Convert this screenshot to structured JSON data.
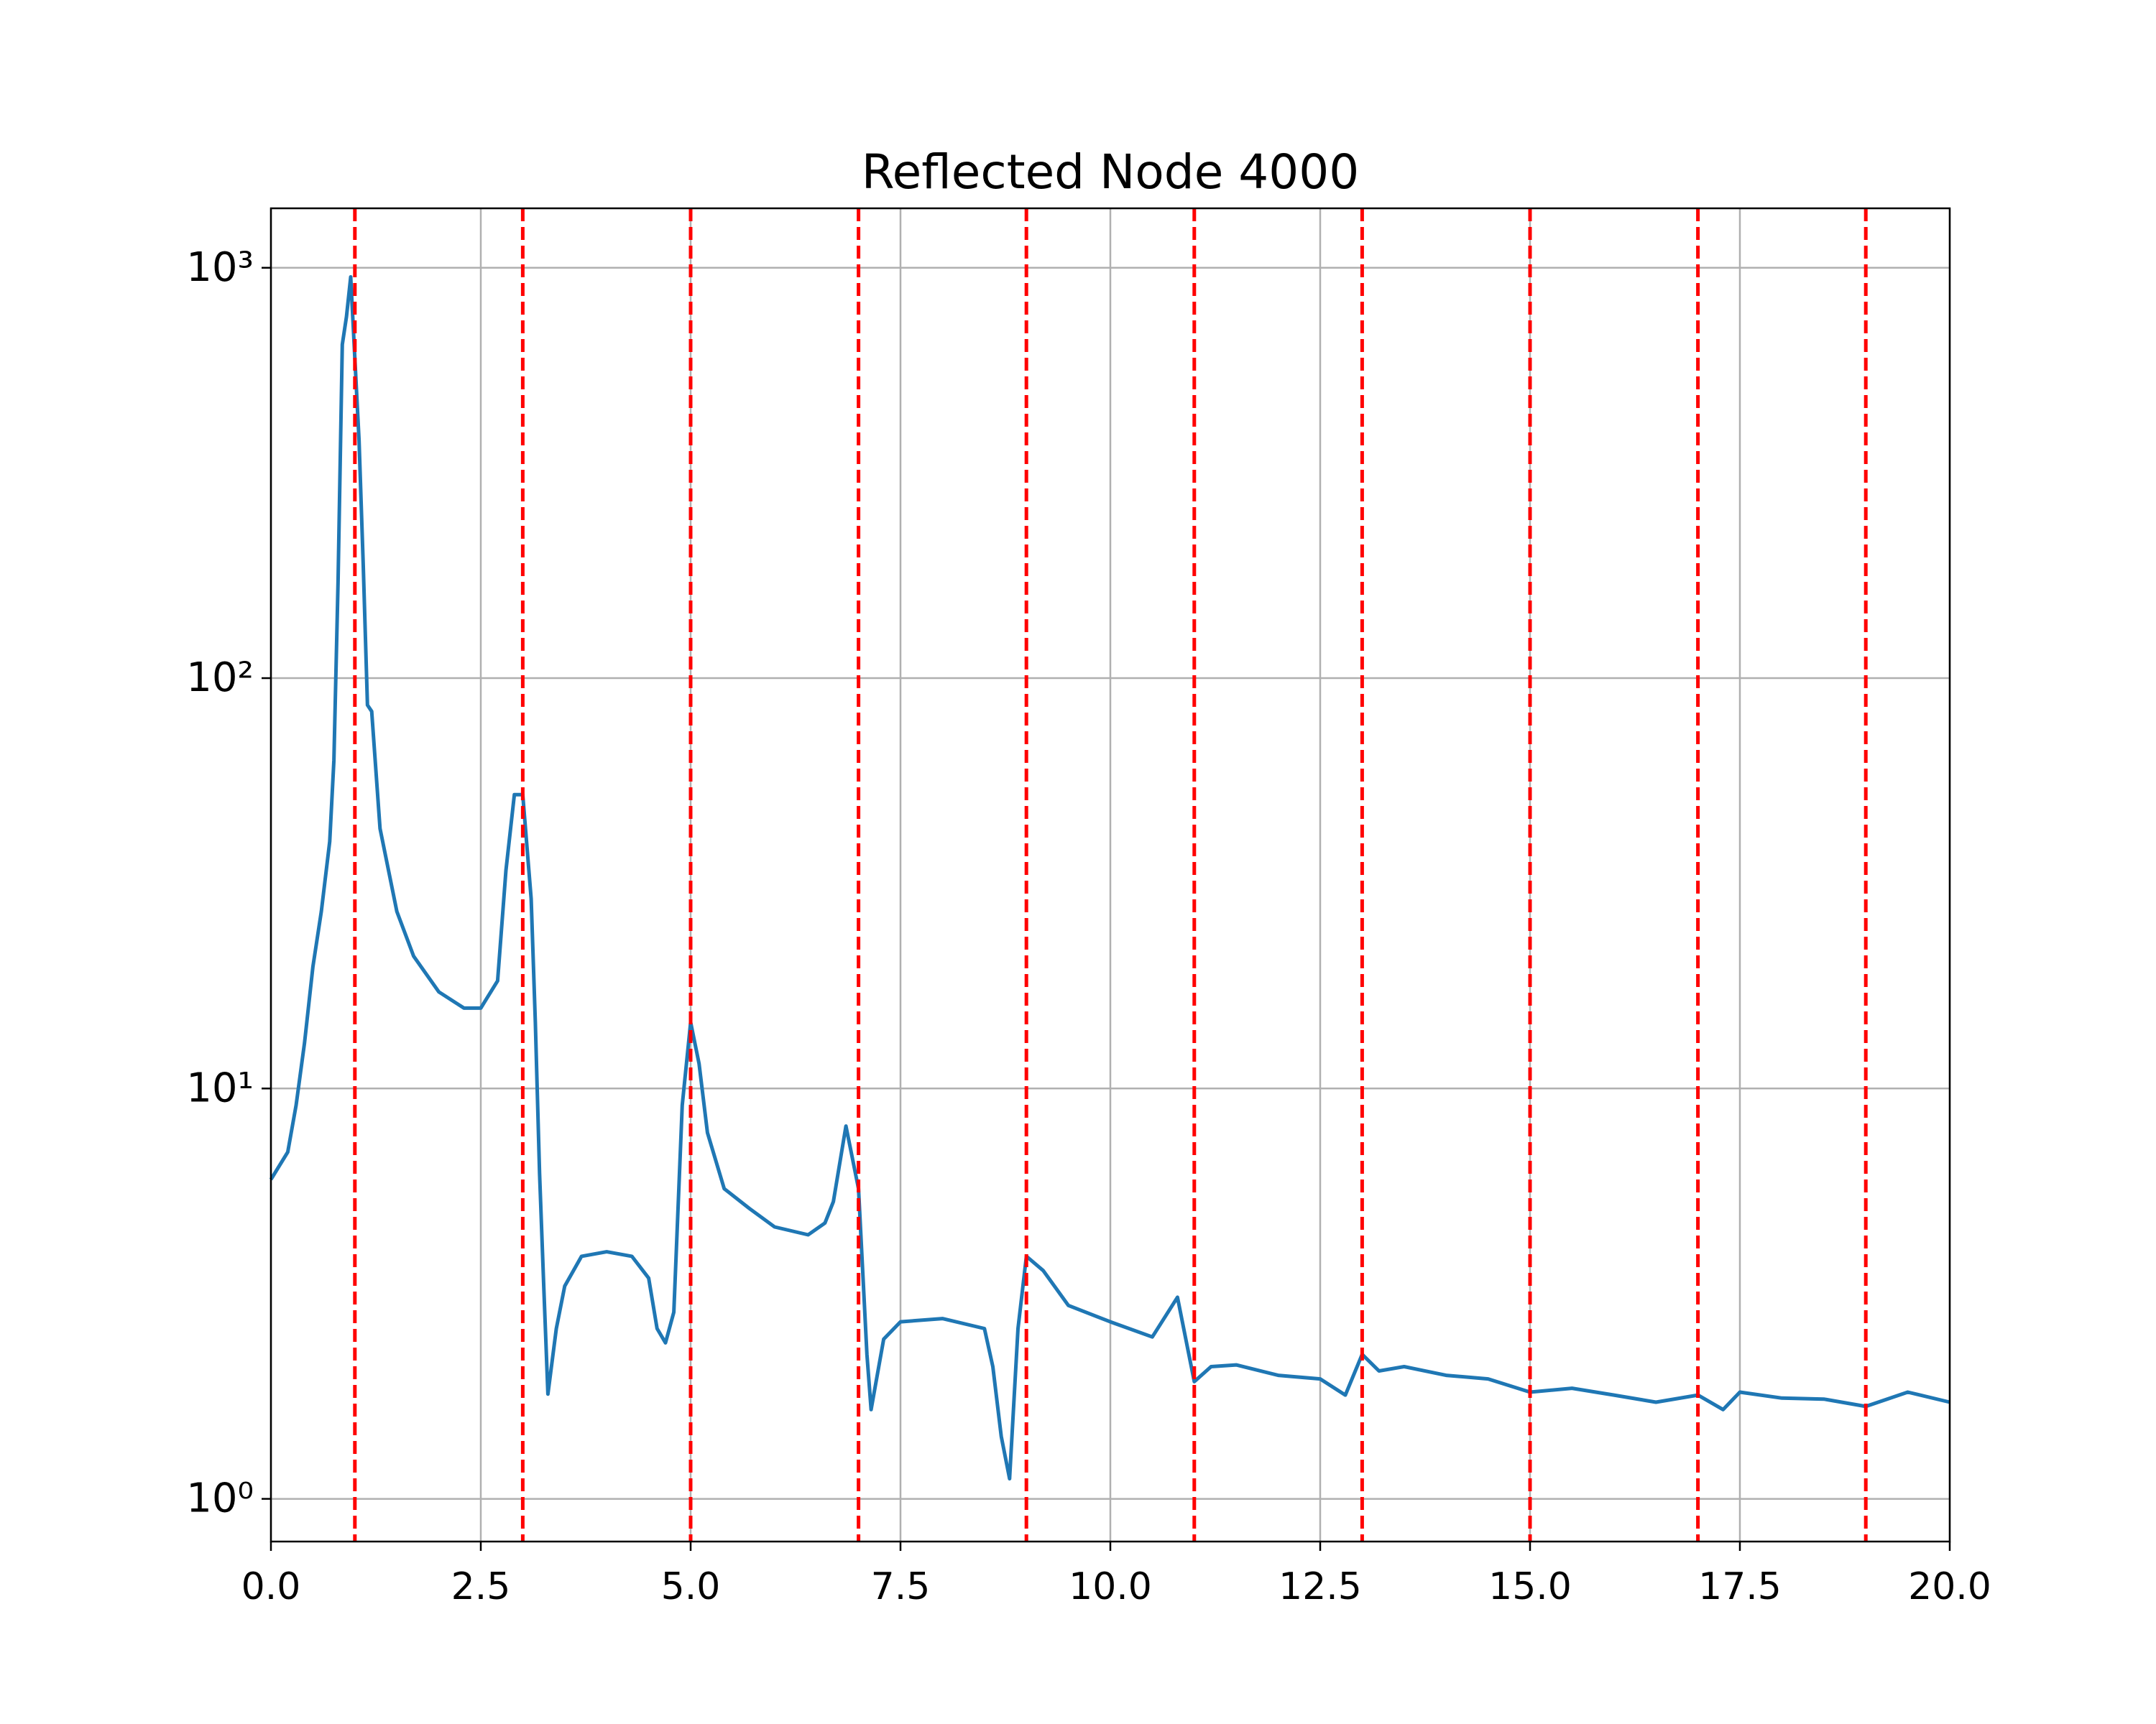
{
  "chart_data": {
    "type": "line",
    "title": "Reflected Node 4000",
    "x": [
      0,
      0.2,
      0.3,
      0.4,
      0.5,
      0.6,
      0.7,
      0.75,
      0.8,
      0.85,
      0.9,
      0.95,
      1.0,
      1.05,
      1.1,
      1.15,
      1.2,
      1.3,
      1.5,
      1.7,
      2.0,
      2.3,
      2.5,
      2.7,
      2.8,
      2.9,
      3.0,
      3.1,
      3.15,
      3.2,
      3.25,
      3.3,
      3.4,
      3.5,
      3.7,
      4.0,
      4.3,
      4.5,
      4.6,
      4.7,
      4.8,
      4.9,
      5.0,
      5.1,
      5.2,
      5.4,
      5.7,
      6.0,
      6.4,
      6.6,
      6.7,
      6.85,
      7.0,
      7.1,
      7.15,
      7.3,
      7.5,
      8.0,
      8.5,
      8.6,
      8.7,
      8.8,
      8.9,
      9.0,
      9.2,
      9.5,
      10.0,
      10.5,
      10.8,
      11.0,
      11.2,
      11.5,
      12.0,
      12.5,
      12.8,
      13.0,
      13.2,
      13.5,
      14.0,
      14.5,
      15.0,
      15.5,
      16.0,
      16.5,
      17.0,
      17.3,
      17.5,
      18.0,
      18.5,
      19.0,
      19.5,
      20.0
    ],
    "series": [
      {
        "color": "#1f77b4",
        "values": [
          6.0,
          7,
          9.1,
          12.9,
          19.8,
          27,
          40,
          63,
          172,
          650,
          760,
          950,
          600,
          380,
          187,
          86,
          83,
          43,
          27,
          21,
          17.2,
          15.7,
          15.7,
          18.3,
          34,
          52,
          52,
          29,
          14.5,
          6.2,
          3.3,
          1.8,
          2.6,
          3.3,
          3.9,
          4.0,
          3.9,
          3.45,
          2.6,
          2.4,
          2.85,
          9.1,
          14.5,
          11.5,
          7.8,
          5.7,
          5.1,
          4.6,
          4.4,
          4.7,
          5.3,
          8.1,
          5.7,
          2.25,
          1.65,
          2.45,
          2.7,
          2.75,
          2.6,
          2.1,
          1.42,
          1.12,
          2.6,
          3.9,
          3.6,
          2.96,
          2.7,
          2.48,
          3.1,
          1.93,
          2.1,
          2.12,
          2.0,
          1.96,
          1.79,
          2.25,
          2.05,
          2.1,
          2.0,
          1.96,
          1.82,
          1.86,
          1.79,
          1.72,
          1.79,
          1.65,
          1.82,
          1.76,
          1.75,
          1.68,
          1.82,
          1.72
        ]
      }
    ],
    "vlines": [
      1,
      3,
      5,
      7,
      9,
      11,
      13,
      15,
      17,
      19
    ],
    "vline_color": "#ff0000",
    "xlim": [
      0,
      20
    ],
    "ylim": [
      0.787,
      1396
    ],
    "yscale": "log",
    "grid": true,
    "xticks": [
      {
        "value": 0,
        "label": "0.0"
      },
      2.5,
      {
        "value": 5,
        "label": "5.0"
      },
      7.5,
      {
        "value": 10,
        "label": "10.0"
      },
      12.5,
      {
        "value": 15,
        "label": "15.0"
      },
      17.5,
      {
        "value": 20,
        "label": "20.0"
      }
    ],
    "yticks": [
      {
        "value": 1,
        "label": "10⁰"
      },
      {
        "value": 10,
        "label": "10¹"
      },
      {
        "value": 100,
        "label": "10²"
      },
      {
        "value": 1000,
        "label": "10³"
      }
    ]
  }
}
